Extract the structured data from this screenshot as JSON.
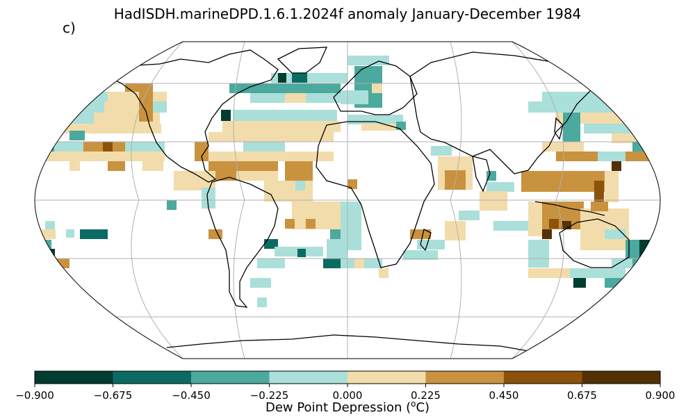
{
  "title": "HadISDH.marineDPD.1.6.1.2024f anomaly January-December 1984",
  "panel_label": "c)",
  "projection": "Robinson",
  "colorbar": {
    "label_prefix": "Dew Point Depression (",
    "label_sup": "o",
    "label_suffix": "C)",
    "ticks": [
      "−0.900",
      "−0.675",
      "−0.450",
      "−0.225",
      "0.000",
      "0.225",
      "0.450",
      "0.675",
      "0.900"
    ],
    "colors": [
      "#003c30",
      "#0b6b62",
      "#4ba99e",
      "#aadfda",
      "#f2dcab",
      "#c8923f",
      "#8c510a",
      "#543005"
    ]
  },
  "colors": {
    "land_outline": "#000000",
    "graticule": "#b0b0b0",
    "background": "#ffffff"
  }
}
